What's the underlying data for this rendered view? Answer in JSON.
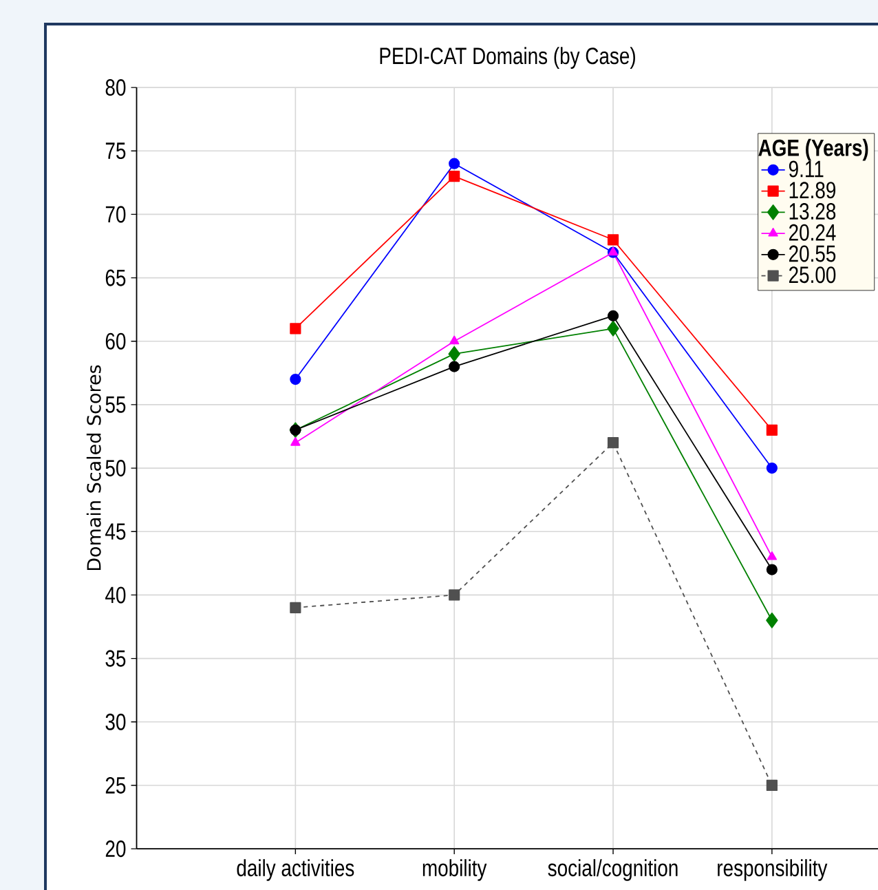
{
  "chart_data": {
    "type": "line",
    "title": "PEDI-CAT Domains (by Case)",
    "ylabel": "Domain Scaled Scores",
    "legend_title": "AGE (Years)",
    "categories": [
      "daily activities",
      "mobility",
      "social/cognition",
      "responsibility"
    ],
    "ylim": [
      20,
      80
    ],
    "yticks": [
      20,
      25,
      30,
      35,
      40,
      45,
      50,
      55,
      60,
      65,
      70,
      75,
      80
    ],
    "grid": true,
    "legend": "top right",
    "series": [
      {
        "name": "9.11",
        "color": "#0000ff",
        "marker": "circle",
        "line_style": "solid",
        "values": [
          57,
          74,
          67,
          50
        ]
      },
      {
        "name": "12.89",
        "color": "#ff0000",
        "marker": "square",
        "line_style": "solid",
        "values": [
          61,
          73,
          68,
          53
        ]
      },
      {
        "name": "13.28",
        "color": "#008000",
        "marker": "diamond",
        "line_style": "solid",
        "values": [
          53,
          59,
          61,
          38
        ]
      },
      {
        "name": "20.24",
        "color": "#ff00ff",
        "marker": "triangle",
        "line_style": "solid",
        "values": [
          52,
          60,
          67,
          43
        ]
      },
      {
        "name": "20.55",
        "color": "#000000",
        "marker": "circle",
        "line_style": "solid",
        "values": [
          53,
          58,
          62,
          42
        ]
      },
      {
        "name": "25.00",
        "color": "#505050",
        "marker": "square",
        "line_style": "dashed",
        "values": [
          39,
          40,
          52,
          25
        ]
      }
    ]
  }
}
